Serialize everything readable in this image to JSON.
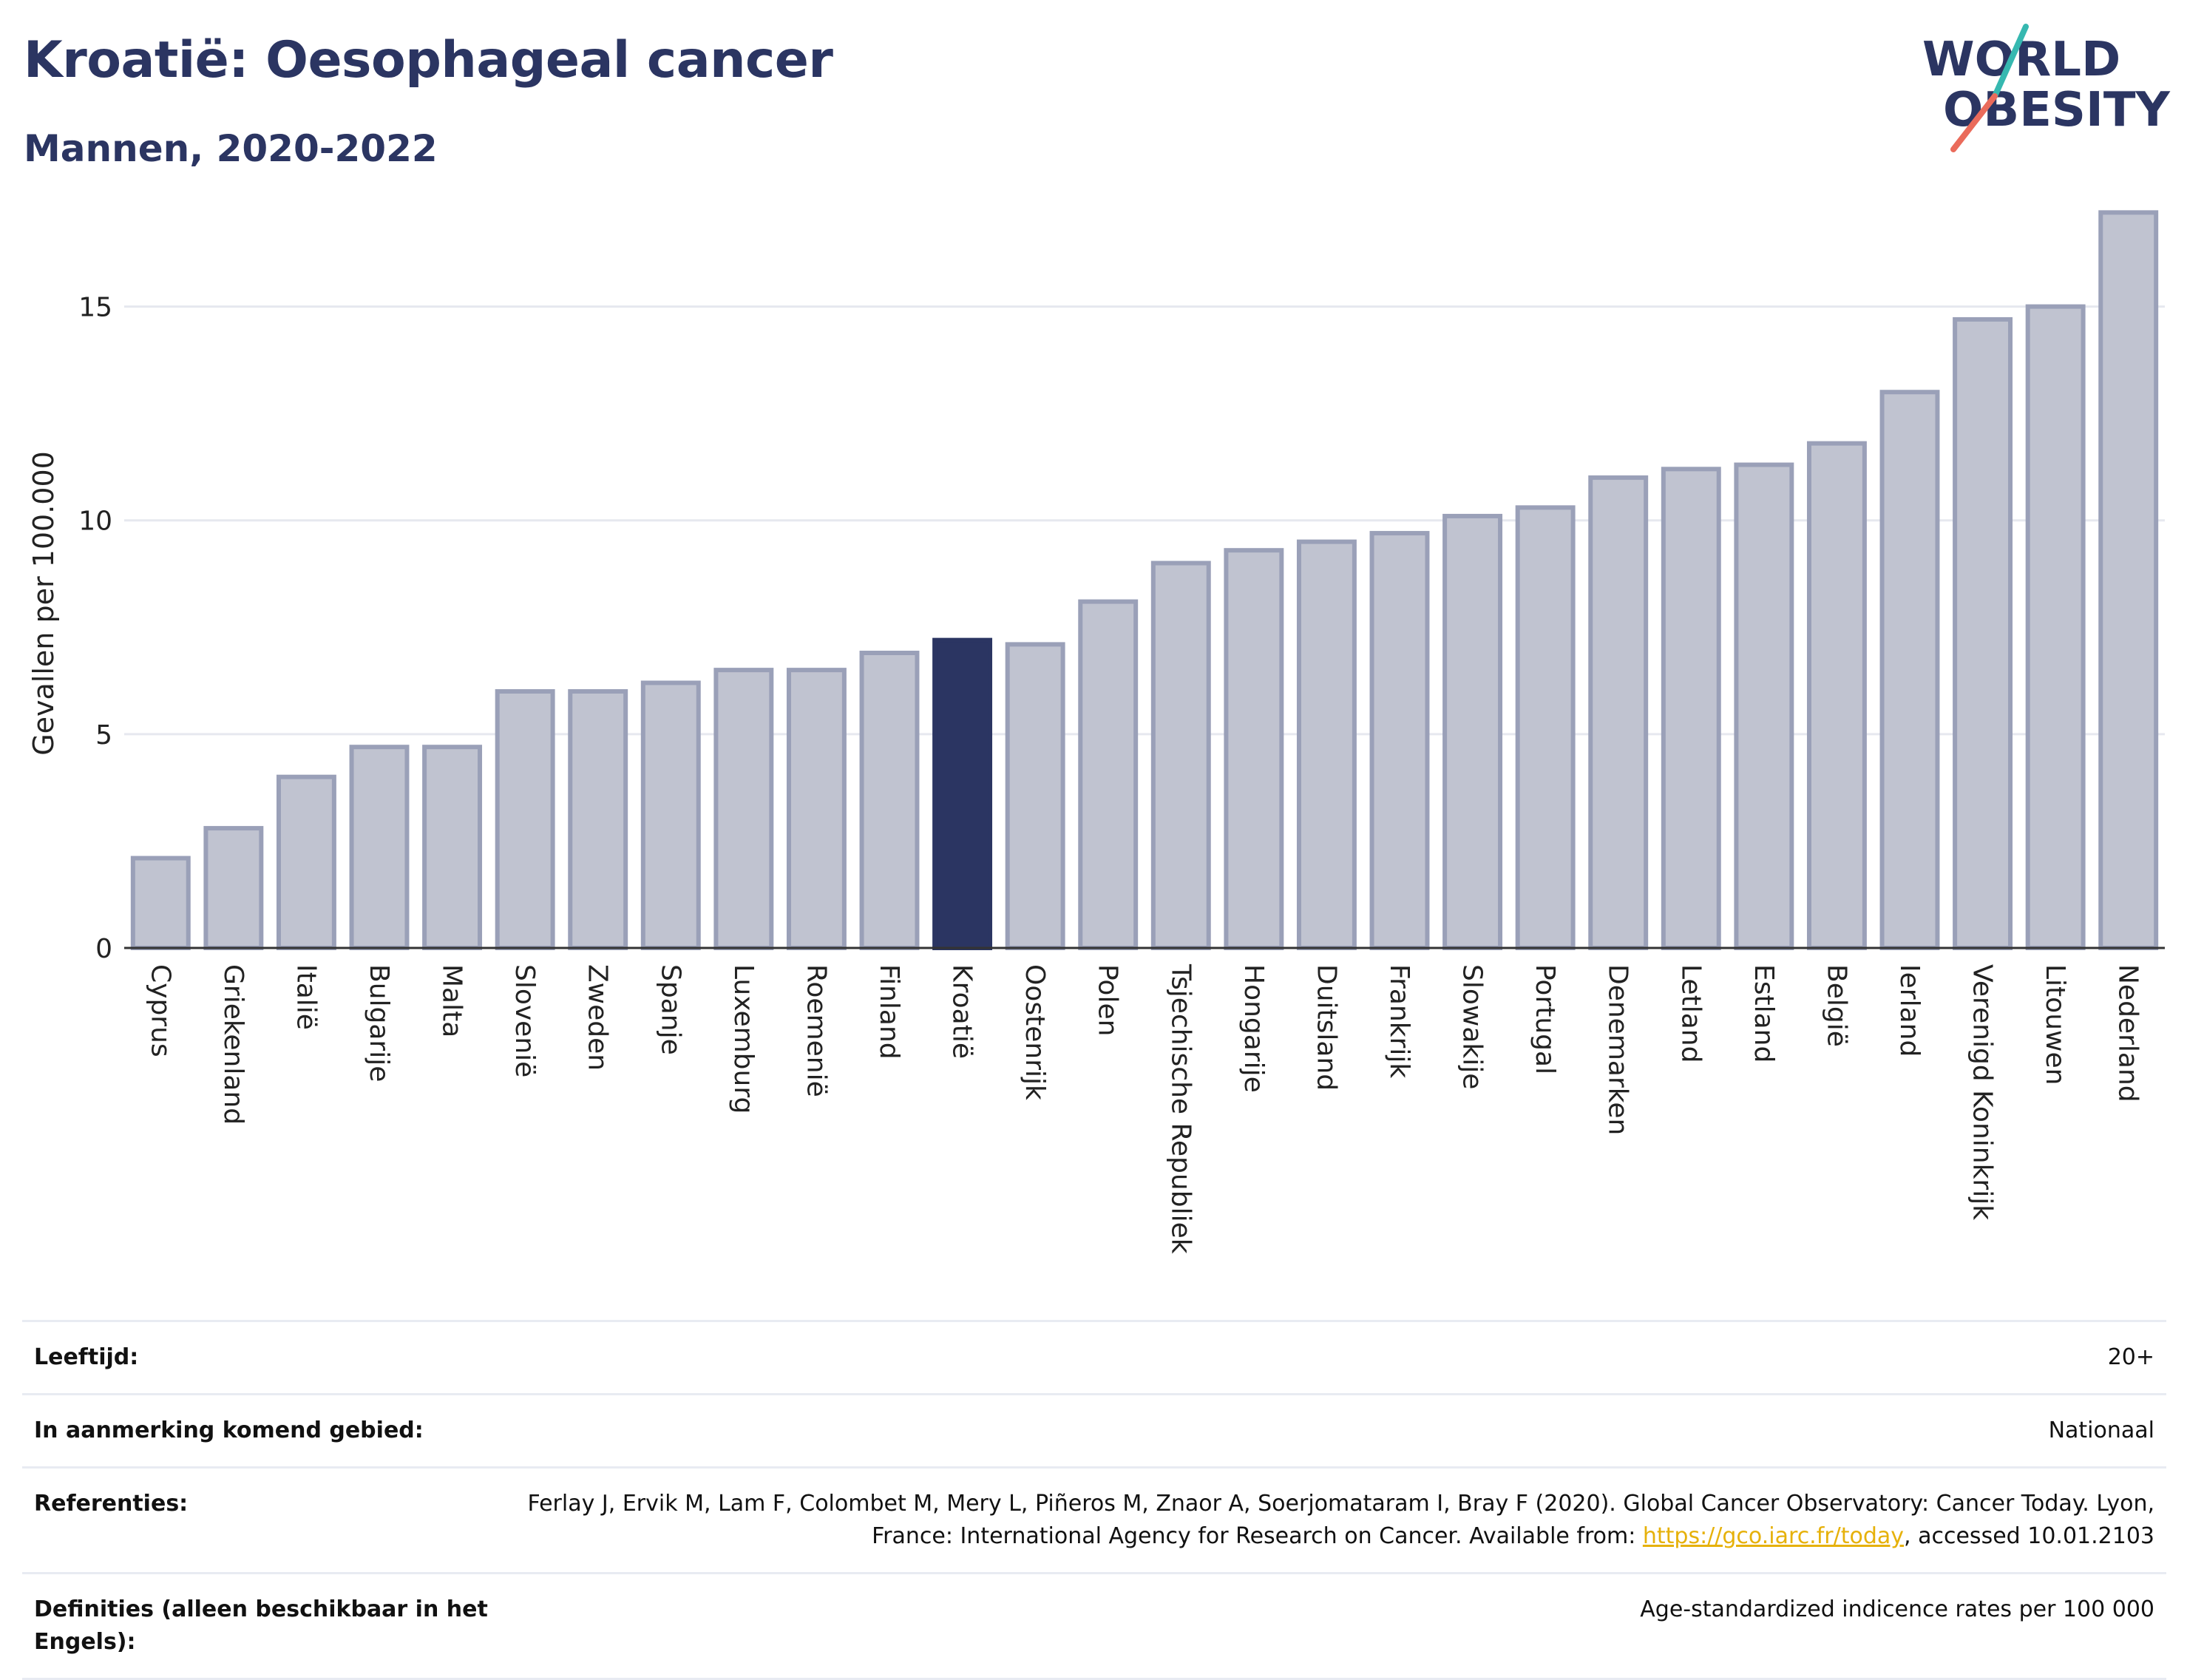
{
  "header": {
    "title": "Kroatië: Oesophageal cancer",
    "subtitle": "Mannen, 2020-2022"
  },
  "logo": {
    "line1": "WORLD",
    "line2": "OBESITY"
  },
  "chart_data": {
    "type": "bar",
    "ylabel": "Gevallen per 100.000",
    "ylim": [
      0,
      17.5
    ],
    "yticks": [
      0,
      5,
      10,
      15
    ],
    "grid": true,
    "highlight": "Kroatië",
    "colors": {
      "bar": "#c0c3d0",
      "bar_edge": "#9aa0b8",
      "highlight": "#2b3562"
    },
    "categories": [
      "Cyprus",
      "Griekenland",
      "Italië",
      "Bulgarije",
      "Malta",
      "Slovenië",
      "Zweden",
      "Spanje",
      "Luxemburg",
      "Roemenië",
      "Finland",
      "Kroatië",
      "Oostenrijk",
      "Polen",
      "Tsjechische Republiek",
      "Hongarije",
      "Duitsland",
      "Frankrijk",
      "Slowakije",
      "Portugal",
      "Denemarken",
      "Letland",
      "Estland",
      "België",
      "Ierland",
      "Verenigd Koninkrijk",
      "Litouwen",
      "Nederland"
    ],
    "values": [
      2.1,
      2.8,
      4.0,
      4.7,
      4.7,
      6.0,
      6.0,
      6.2,
      6.5,
      6.5,
      6.9,
      7.2,
      7.1,
      8.1,
      9.0,
      9.3,
      9.5,
      9.7,
      10.1,
      10.3,
      11.0,
      11.2,
      11.3,
      11.8,
      13.0,
      14.7,
      15.0,
      17.2
    ]
  },
  "info": {
    "age_label": "Leeftijd:",
    "age_value": "20+",
    "area_label": "In aanmerking komend gebied:",
    "area_value": "Nationaal",
    "ref_label": "Referenties:",
    "ref_text_1": "Ferlay J, Ervik M, Lam F, Colombet M, Mery L, Piñeros M, Znaor A, Soerjomataram I, Bray F (2020). Global Cancer Observatory: Cancer Today. Lyon, France: International Agency for Research on Cancer. Available from: ",
    "ref_link": "https://gco.iarc.fr/today",
    "ref_text_2": ", accessed 10.01.2103",
    "def_label": "Definities (alleen beschikbaar in het Engels):",
    "def_value": "Age-standardized indicence rates per 100 000"
  }
}
